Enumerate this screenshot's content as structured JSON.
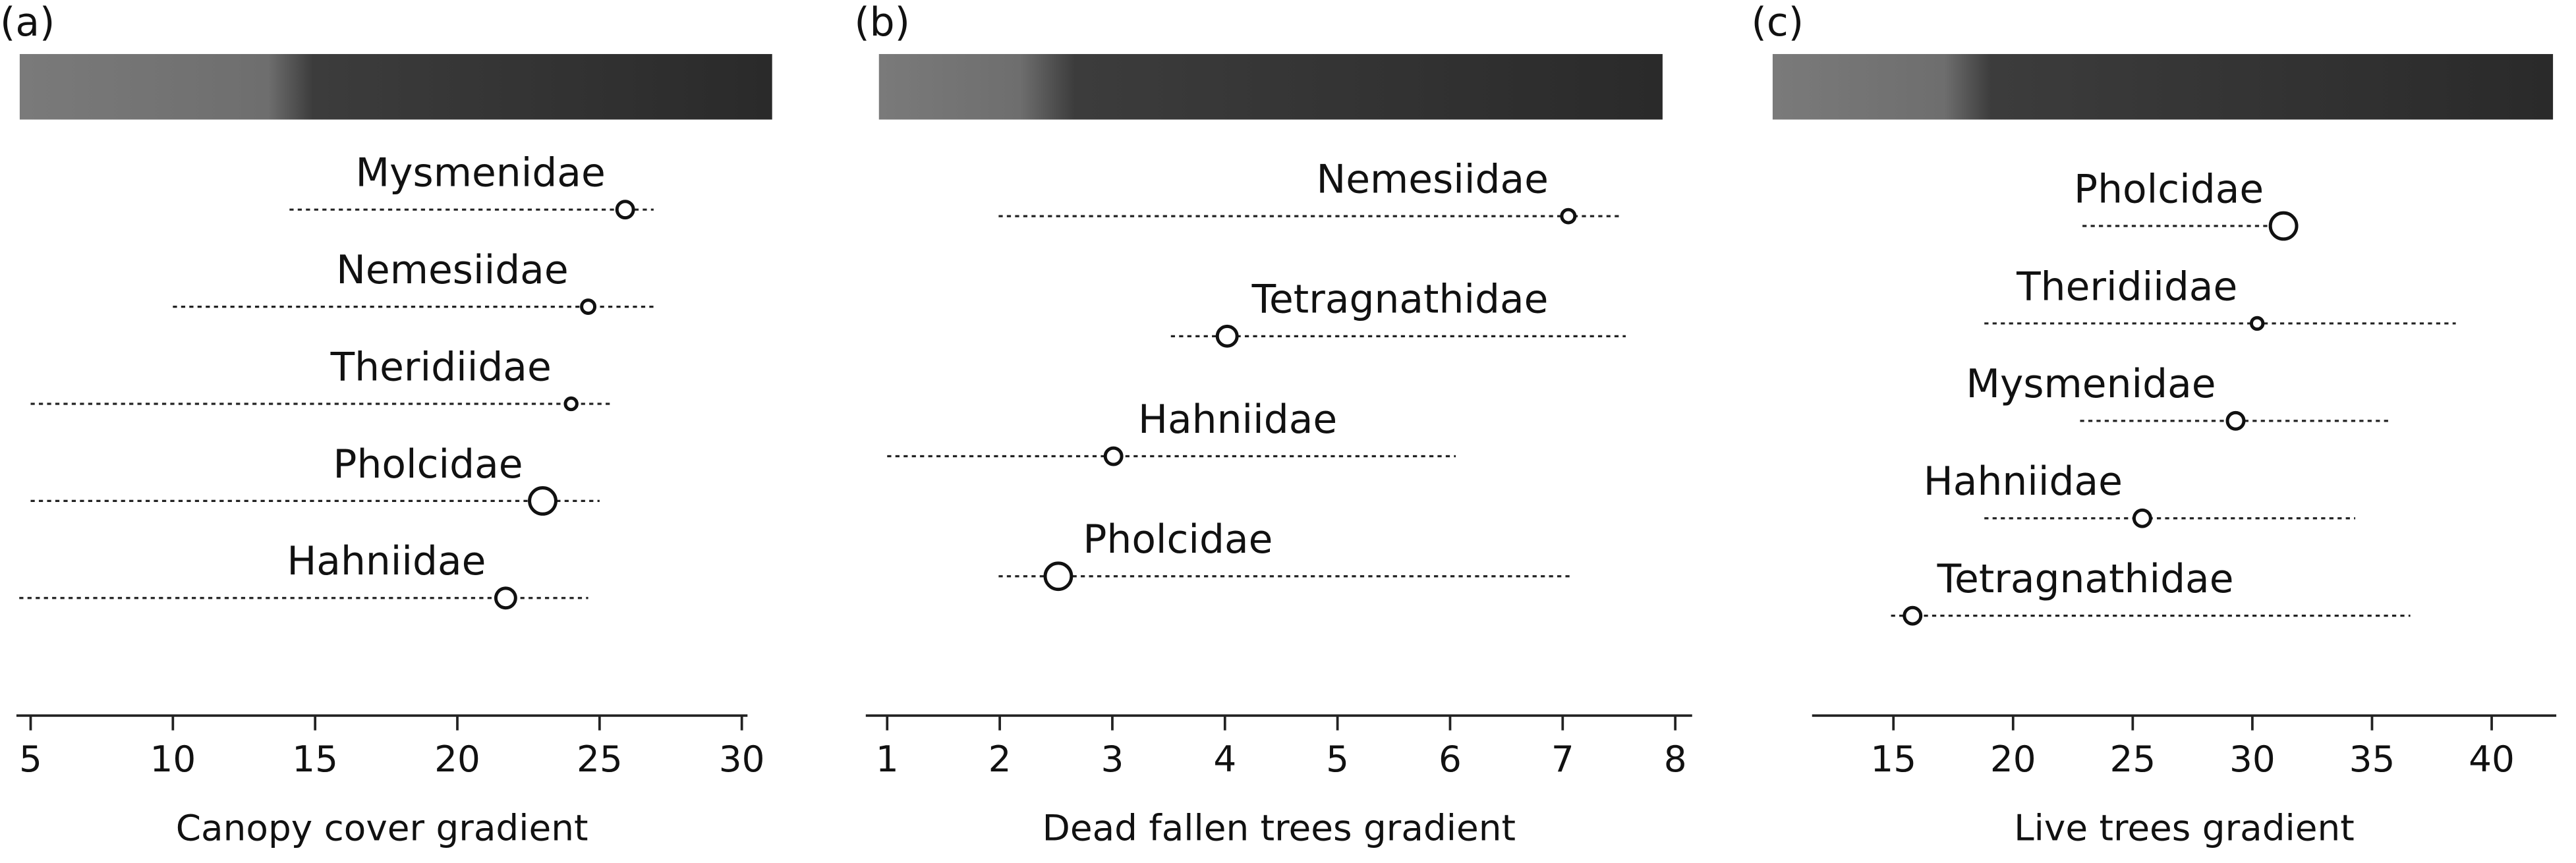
{
  "chart_data": [
    {
      "type": "interval",
      "panel_label": "(a)",
      "xlabel": "Canopy cover gradient",
      "xlim": [
        4.5,
        30.2
      ],
      "xticks": [
        5,
        10,
        15,
        20,
        25,
        30
      ],
      "categories": [
        "Mysmenidae",
        "Nemesiidae",
        "Theridiidae",
        "Pholcidae",
        "Hahniidae"
      ],
      "values": [
        25.9,
        24.6,
        24.0,
        23.0,
        21.7
      ],
      "lows": [
        14.1,
        10.0,
        5.0,
        5.0,
        4.6
      ],
      "highs": [
        26.9,
        26.9,
        25.4,
        25.0,
        24.6
      ],
      "sizes": [
        5,
        4,
        3.5,
        8,
        6
      ]
    },
    {
      "type": "interval",
      "panel_label": "(b)",
      "xlabel": "Dead fallen trees gradient",
      "xlim": [
        0.81,
        8.15
      ],
      "xticks": [
        1,
        2,
        3,
        4,
        5,
        6,
        7,
        8
      ],
      "categories": [
        "Nemesiidae",
        "Tetragnathidae",
        "Hahniidae",
        "Pholcidae"
      ],
      "values": [
        7.05,
        4.02,
        3.01,
        2.52
      ],
      "lows": [
        1.99,
        3.52,
        1.0,
        1.99
      ],
      "highs": [
        7.53,
        7.56,
        6.05,
        7.08
      ],
      "sizes": [
        4,
        6,
        5,
        8
      ]
    },
    {
      "type": "interval",
      "panel_label": "(c)",
      "xlabel": "Live trees gradient",
      "xlim": [
        11.6,
        42.7
      ],
      "xticks": [
        15,
        20,
        25,
        30,
        35,
        40
      ],
      "categories": [
        "Pholcidae",
        "Theridiidae",
        "Mysmenidae",
        "Hahniidae",
        "Tetragnathidae"
      ],
      "values": [
        31.3,
        30.2,
        29.3,
        25.4,
        15.8
      ],
      "lows": [
        22.9,
        18.8,
        22.8,
        18.8,
        14.9
      ],
      "highs": [
        31.0,
        38.5,
        35.7,
        34.3,
        36.6
      ],
      "sizes": [
        8,
        3.5,
        5,
        5,
        5
      ]
    }
  ]
}
